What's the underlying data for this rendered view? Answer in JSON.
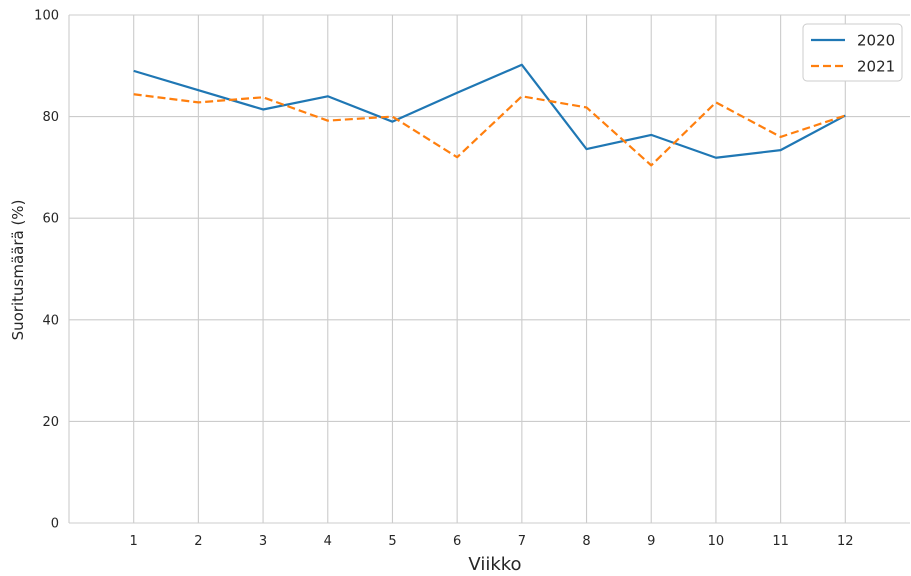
{
  "chart_data": {
    "type": "line",
    "xlabel": "Viikko",
    "ylabel": "Suoritusmäärä (%)",
    "x": [
      1,
      2,
      3,
      4,
      5,
      6,
      7,
      8,
      9,
      10,
      11,
      12
    ],
    "xtick_labels": [
      "1",
      "2",
      "3",
      "4",
      "5",
      "6",
      "7",
      "8",
      "9",
      "10",
      "11",
      "12"
    ],
    "xlim": [
      0,
      13
    ],
    "ylim": [
      0,
      100
    ],
    "yticks": [
      0,
      20,
      40,
      60,
      80,
      100
    ],
    "ytick_labels": [
      "0",
      "20",
      "40",
      "60",
      "80",
      "100"
    ],
    "grid": true,
    "legend_position": "top-right",
    "series": [
      {
        "name": "2020",
        "color": "#1f77b4",
        "style": "solid",
        "values": [
          89.0,
          85.2,
          81.4,
          84.0,
          79.0,
          84.7,
          90.2,
          73.6,
          76.4,
          71.9,
          73.4,
          80.2
        ]
      },
      {
        "name": "2021",
        "color": "#ff7f0e",
        "style": "dashed",
        "values": [
          84.4,
          82.8,
          83.8,
          79.2,
          80.0,
          72.0,
          84.0,
          81.8,
          70.4,
          82.8,
          76.0,
          80.2
        ]
      }
    ]
  }
}
